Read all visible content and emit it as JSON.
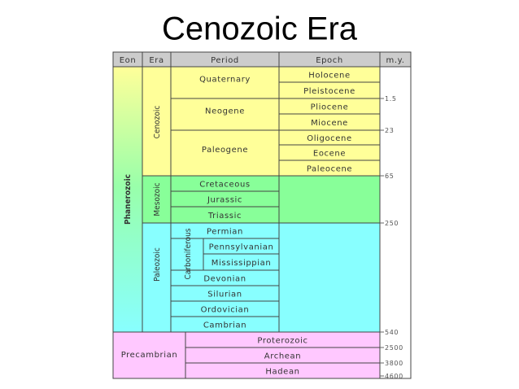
{
  "title": "Cenozoic Era",
  "header": {
    "eon": "Eon",
    "era": "Era",
    "period": "Period",
    "epoch": "Epoch",
    "my": "m.y."
  },
  "eon": "Phanerozoic",
  "eras": [
    "Cenozoic",
    "Mesozoic",
    "Paleozoic"
  ],
  "periods": [
    "Quaternary",
    "Neogene",
    "Paleogene",
    "Cretaceous",
    "Jurassic",
    "Triassic",
    "Permian",
    "Carboniferous",
    "Devonian",
    "Silurian",
    "Ordovician",
    "Cambrian"
  ],
  "subperiods": [
    "Pennsylvanian",
    "Mississippian"
  ],
  "epochs": [
    "Holocene",
    "Pleistocene",
    "Pliocene",
    "Miocene",
    "Oligocene",
    "Eocene",
    "Paleocene"
  ],
  "my": [
    1.5,
    23,
    65,
    250,
    540,
    2500,
    3800,
    4600
  ],
  "precambrian": {
    "label": "Precambrian",
    "eons": [
      "Proterozoic",
      "Archean",
      "Hadean"
    ]
  }
}
